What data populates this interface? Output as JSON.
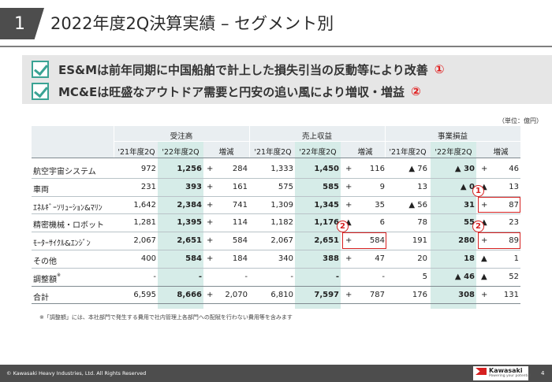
{
  "header": {
    "number": "1",
    "title": "2022年度2Q決算実績 – セグメント別"
  },
  "summary": [
    {
      "text": "ES&Mは前年同期に中国船舶で計上した損失引当の反動等により改善",
      "mark": "①"
    },
    {
      "text": "MC&Eは旺盛なアウトドア需要と円安の追い風により増収・増益",
      "mark": "②"
    }
  ],
  "unit": "（単位：億円）",
  "groups": [
    "受注高",
    "売上収益",
    "事業損益"
  ],
  "subheaders": {
    "prev": "'21年度2Q",
    "curr": "'22年度2Q",
    "diff": "増減"
  },
  "rows": [
    {
      "label": "航空宇宙システム",
      "v": [
        "972",
        "1,256",
        "+",
        "284",
        "1,333",
        "1,450",
        "+",
        "116",
        "▲ 76",
        "▲ 30",
        "+",
        "46"
      ]
    },
    {
      "label": "車両",
      "v": [
        "231",
        "393",
        "+",
        "161",
        "575",
        "585",
        "+",
        "9",
        "13",
        "▲ 0",
        "▲",
        "13"
      ]
    },
    {
      "label": "ｴﾈﾙｷﾞｰｿﾘｭｰｼｮﾝ&ﾏﾘﾝ",
      "v": [
        "1,642",
        "2,384",
        "+",
        "741",
        "1,309",
        "1,345",
        "+",
        "35",
        "▲ 56",
        "31",
        "+",
        "87"
      ]
    },
    {
      "label": "精密機械・ロボット",
      "v": [
        "1,281",
        "1,395",
        "+",
        "114",
        "1,182",
        "1,176",
        "▲",
        "6",
        "78",
        "55",
        "▲",
        "23"
      ]
    },
    {
      "label": "ﾓｰﾀｰｻｲｸﾙ&ｴﾝｼﾞﾝ",
      "v": [
        "2,067",
        "2,651",
        "+",
        "584",
        "2,067",
        "2,651",
        "+",
        "584",
        "191",
        "280",
        "+",
        "89"
      ]
    },
    {
      "label": "その他",
      "v": [
        "400",
        "584",
        "+",
        "184",
        "340",
        "388",
        "+",
        "47",
        "20",
        "18",
        "▲",
        "1"
      ]
    },
    {
      "label": "調整額",
      "sup": "※",
      "v": [
        "-",
        "-",
        "",
        "-",
        "-",
        "-",
        "",
        "-",
        "5",
        "▲ 46",
        "▲",
        "52"
      ]
    },
    {
      "label": "合計",
      "v": [
        "6,595",
        "8,666",
        "+",
        "2,070",
        "6,810",
        "7,597",
        "+",
        "787",
        "176",
        "308",
        "+",
        "131"
      ]
    }
  ],
  "badges": {
    "one": "1",
    "two": "2"
  },
  "note": "※「調整額」には、本社部門で発生する費用で社内管理上各部門への配賦を行わない費用等を含みます",
  "footer": {
    "copyright": "© Kawasaki Heavy Industries, Ltd. All Rights Reserved",
    "logo_name": "Kawasaki",
    "logo_tagline": "Powering your potential",
    "page": "4"
  },
  "colors": {
    "accent": "#3aa394",
    "highlight": "#d6ece8",
    "alert": "#d62020",
    "footer": "#4d4d4d"
  }
}
